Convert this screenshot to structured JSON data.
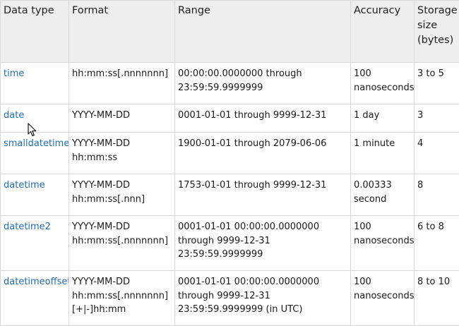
{
  "headers": {
    "data_type": "Data type",
    "format": "Format",
    "range": "Range",
    "accuracy": "Accuracy",
    "storage": [
      "Storage",
      "size",
      "(bytes)"
    ]
  },
  "rows": [
    {
      "name": "time",
      "format": [
        "hh:mm:ss[.nnnnnnn]"
      ],
      "range": [
        "00:00:00.0000000 through",
        "23:59:59.9999999"
      ],
      "accuracy": [
        "100",
        "nanoseconds"
      ],
      "storage": "3 to 5"
    },
    {
      "name": "date",
      "format": [
        "YYYY-MM-DD"
      ],
      "range": [
        "0001-01-01 through 9999-12-31"
      ],
      "accuracy": [
        "1 day"
      ],
      "storage": "3"
    },
    {
      "name": "smalldatetime",
      "format": [
        "YYYY-MM-DD",
        "hh:mm:ss"
      ],
      "range": [
        "1900-01-01 through 2079-06-06"
      ],
      "accuracy": [
        "1 minute"
      ],
      "storage": "4"
    },
    {
      "name": "datetime",
      "format": [
        "YYYY-MM-DD",
        "hh:mm:ss[.nnn]"
      ],
      "range": [
        "1753-01-01 through 9999-12-31"
      ],
      "accuracy": [
        "0.00333",
        "second"
      ],
      "storage": "8"
    },
    {
      "name": "datetime2",
      "format": [
        "YYYY-MM-DD",
        "hh:mm:ss[.nnnnnnn]"
      ],
      "range": [
        "0001-01-01 00:00:00.0000000",
        "through 9999-12-31",
        "23:59:59.9999999"
      ],
      "accuracy": [
        "100",
        "nanoseconds"
      ],
      "storage": "6 to 8"
    },
    {
      "name": "datetimeoffset",
      "format": [
        "YYYY-MM-DD",
        "hh:mm:ss[.nnnnnnn]",
        "[+|-]hh:mm"
      ],
      "range": [
        "0001-01-01 00:00:00.0000000",
        "through 9999-12-31",
        "23:59:59.9999999 (in UTC)"
      ],
      "accuracy": [
        "100",
        "nanoseconds"
      ],
      "storage": "8 to 10"
    }
  ],
  "cursor": {
    "icon": "mouse-pointer-icon"
  }
}
